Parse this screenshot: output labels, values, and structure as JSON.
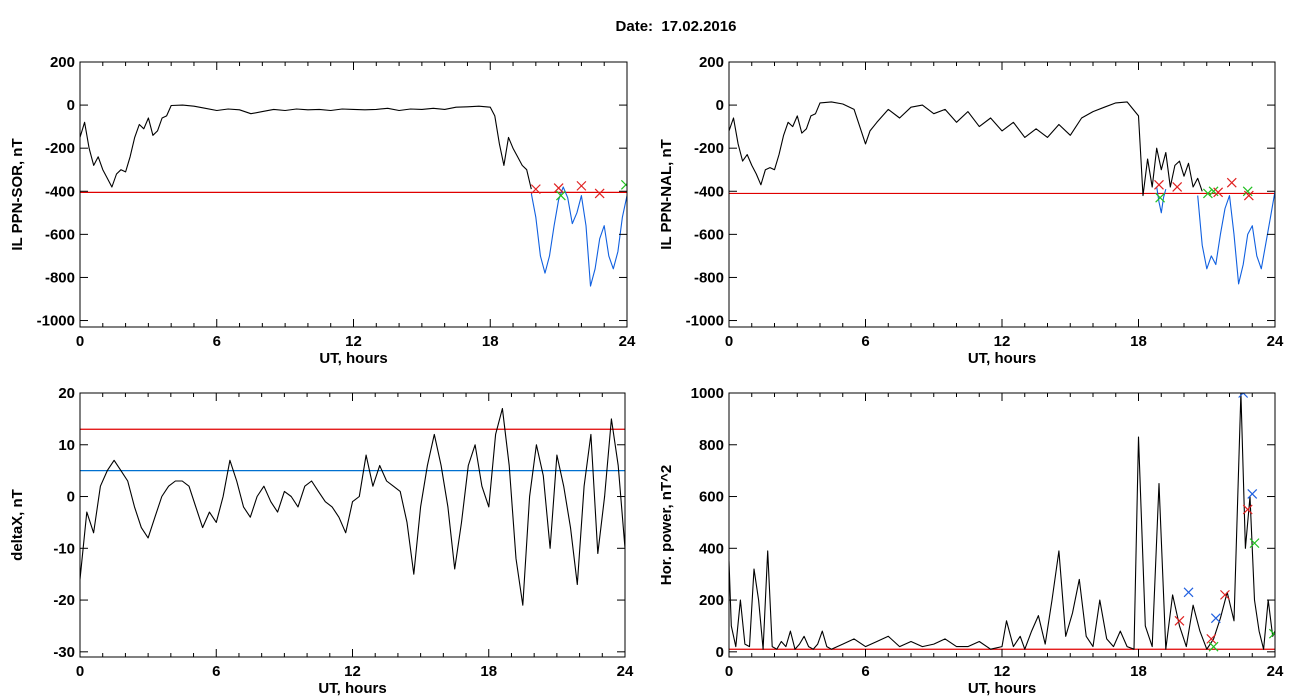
{
  "figure": {
    "title": "Date:  17.02.2016"
  },
  "colors": {
    "trace": "#000000",
    "threshold_red": "#e00000",
    "threshold_blue": "#0070d0",
    "segment_blue": "#1060e0",
    "marker_red": "#e02020",
    "marker_green": "#20c020",
    "marker_blue": "#2060e0"
  },
  "chart_data": [
    {
      "id": "p1",
      "type": "line",
      "xlabel": "UT, hours",
      "ylabel": "IL PPN-SOR, nT",
      "xlim": [
        0,
        24
      ],
      "ylim": [
        -1030,
        200
      ],
      "xticks": [
        0,
        6,
        12,
        18,
        24
      ],
      "yticks": [
        200,
        0,
        -200,
        -400,
        -600,
        -800,
        -1000
      ],
      "hlines": [
        {
          "y": -405,
          "color": "threshold_red"
        }
      ],
      "series": [
        {
          "color": "trace",
          "x": [
            0,
            0.2,
            0.4,
            0.6,
            0.8,
            1.0,
            1.2,
            1.4,
            1.6,
            1.8,
            2.0,
            2.2,
            2.4,
            2.6,
            2.8,
            3.0,
            3.2,
            3.4,
            3.6,
            3.8,
            4.0,
            4.5,
            5.0,
            5.5,
            6.0,
            6.5,
            7.0,
            7.5,
            8.0,
            8.5,
            9.0,
            9.5,
            10.0,
            10.5,
            11.0,
            11.5,
            12.0,
            12.5,
            13.0,
            13.5,
            14.0,
            14.5,
            15.0,
            15.5,
            16.0,
            16.5,
            17.0,
            17.5,
            18.0,
            18.2,
            18.4,
            18.6,
            18.8,
            19.0,
            19.2,
            19.4,
            19.6,
            19.8
          ],
          "y": [
            -150,
            -80,
            -200,
            -280,
            -240,
            -300,
            -340,
            -380,
            -320,
            -300,
            -310,
            -240,
            -150,
            -90,
            -110,
            -60,
            -140,
            -120,
            -60,
            -50,
            -2,
            0,
            -5,
            -15,
            -25,
            -18,
            -22,
            -40,
            -30,
            -20,
            -25,
            -18,
            -22,
            -20,
            -25,
            -18,
            -20,
            -22,
            -20,
            -15,
            -25,
            -18,
            -20,
            -15,
            -20,
            -10,
            -8,
            -5,
            -10,
            -50,
            -180,
            -280,
            -150,
            -200,
            -240,
            -280,
            -300,
            -390
          ]
        },
        {
          "color": "segment_blue",
          "x": [
            19.8,
            20.0,
            20.2,
            20.4,
            20.6,
            20.8,
            21.0,
            21.2,
            21.4,
            21.6,
            21.8,
            22.0,
            22.2,
            22.4,
            22.6,
            22.8,
            23.0,
            23.2,
            23.4,
            23.6,
            23.8,
            24.0
          ],
          "y": [
            -410,
            -520,
            -700,
            -780,
            -700,
            -560,
            -440,
            -380,
            -430,
            -550,
            -500,
            -420,
            -560,
            -840,
            -760,
            -620,
            -560,
            -700,
            -760,
            -680,
            -520,
            -420
          ]
        }
      ],
      "markers": [
        {
          "x": 20.0,
          "y": -390,
          "color": "marker_red"
        },
        {
          "x": 21.0,
          "y": -385,
          "color": "marker_red"
        },
        {
          "x": 21.1,
          "y": -420,
          "color": "marker_green"
        },
        {
          "x": 22.0,
          "y": -375,
          "color": "marker_red"
        },
        {
          "x": 22.8,
          "y": -410,
          "color": "marker_red"
        },
        {
          "x": 23.95,
          "y": -370,
          "color": "marker_green"
        }
      ]
    },
    {
      "id": "p2",
      "type": "line",
      "xlabel": "UT, hours",
      "ylabel": "IL PPN-NAL, nT",
      "xlim": [
        0,
        24
      ],
      "ylim": [
        -1030,
        200
      ],
      "xticks": [
        0,
        6,
        12,
        18,
        24
      ],
      "yticks": [
        200,
        0,
        -200,
        -400,
        -600,
        -800,
        -1000
      ],
      "hlines": [
        {
          "y": -410,
          "color": "threshold_red"
        }
      ],
      "series": [
        {
          "color": "trace",
          "x": [
            0,
            0.2,
            0.4,
            0.6,
            0.8,
            1.0,
            1.2,
            1.4,
            1.6,
            1.8,
            2.0,
            2.2,
            2.4,
            2.6,
            2.8,
            3.0,
            3.2,
            3.4,
            3.6,
            3.8,
            4.0,
            4.5,
            5.0,
            5.5,
            6.0,
            6.2,
            6.5,
            7.0,
            7.5,
            8.0,
            8.5,
            9.0,
            9.5,
            10.0,
            10.5,
            11.0,
            11.5,
            12.0,
            12.5,
            13.0,
            13.5,
            14.0,
            14.5,
            15.0,
            15.5,
            16.0,
            16.5,
            17.0,
            17.5,
            18.0,
            18.2,
            18.4,
            18.6,
            18.8,
            19.0,
            19.2,
            19.4,
            19.6,
            19.8,
            20.0,
            20.2,
            20.4,
            20.6,
            20.8
          ],
          "y": [
            -120,
            -60,
            -180,
            -260,
            -230,
            -280,
            -320,
            -370,
            -300,
            -290,
            -300,
            -230,
            -140,
            -80,
            -100,
            -50,
            -130,
            -110,
            -50,
            -40,
            10,
            15,
            5,
            -20,
            -180,
            -120,
            -80,
            -20,
            -60,
            -10,
            0,
            -40,
            -20,
            -80,
            -30,
            -100,
            -60,
            -120,
            -80,
            -150,
            -110,
            -150,
            -90,
            -140,
            -60,
            -30,
            -10,
            10,
            15,
            -50,
            -420,
            -250,
            -380,
            -200,
            -300,
            -220,
            -380,
            -280,
            -260,
            -330,
            -270,
            -380,
            -340,
            -400
          ]
        },
        {
          "color": "segment_blue",
          "x": [
            18.8,
            18.9,
            19.0,
            19.1,
            19.2
          ],
          "y": [
            -380,
            -450,
            -500,
            -430,
            -390
          ]
        },
        {
          "color": "segment_blue",
          "x": [
            20.6,
            20.8,
            21.0,
            21.2,
            21.4,
            21.6,
            21.8,
            22.0,
            22.2,
            22.4,
            22.6,
            22.8,
            23.0,
            23.2,
            23.4,
            23.6,
            23.8,
            24.0
          ],
          "y": [
            -420,
            -650,
            -760,
            -700,
            -740,
            -600,
            -480,
            -420,
            -600,
            -830,
            -740,
            -600,
            -560,
            -700,
            -760,
            -640,
            -520,
            -400
          ]
        }
      ],
      "markers": [
        {
          "x": 18.9,
          "y": -370,
          "color": "marker_red"
        },
        {
          "x": 18.95,
          "y": -430,
          "color": "marker_green"
        },
        {
          "x": 19.7,
          "y": -380,
          "color": "marker_red"
        },
        {
          "x": 21.05,
          "y": -410,
          "color": "marker_green"
        },
        {
          "x": 21.3,
          "y": -400,
          "color": "marker_green"
        },
        {
          "x": 21.5,
          "y": -405,
          "color": "marker_red"
        },
        {
          "x": 22.1,
          "y": -360,
          "color": "marker_red"
        },
        {
          "x": 22.8,
          "y": -400,
          "color": "marker_green"
        },
        {
          "x": 22.85,
          "y": -420,
          "color": "marker_red"
        }
      ]
    },
    {
      "id": "p3",
      "type": "line",
      "xlabel": "UT, hours",
      "ylabel": "deltaX, nT",
      "xlim": [
        0,
        24
      ],
      "ylim": [
        -31,
        20
      ],
      "xticks": [
        0,
        6,
        12,
        18,
        24
      ],
      "yticks": [
        20,
        10,
        0,
        -10,
        -20,
        -30
      ],
      "hlines": [
        {
          "y": 13,
          "color": "threshold_red"
        },
        {
          "y": 5,
          "color": "threshold_blue"
        }
      ],
      "series": [
        {
          "color": "trace",
          "x": [
            0,
            0.3,
            0.6,
            0.9,
            1.2,
            1.5,
            1.8,
            2.1,
            2.4,
            2.7,
            3.0,
            3.3,
            3.6,
            3.9,
            4.2,
            4.5,
            4.8,
            5.1,
            5.4,
            5.7,
            6.0,
            6.3,
            6.6,
            6.9,
            7.2,
            7.5,
            7.8,
            8.1,
            8.4,
            8.7,
            9.0,
            9.3,
            9.6,
            9.9,
            10.2,
            10.5,
            10.8,
            11.1,
            11.4,
            11.7,
            12.0,
            12.3,
            12.6,
            12.9,
            13.2,
            13.5,
            13.8,
            14.1,
            14.4,
            14.7,
            15.0,
            15.3,
            15.6,
            15.9,
            16.2,
            16.5,
            16.8,
            17.1,
            17.4,
            17.7,
            18.0,
            18.3,
            18.6,
            18.9,
            19.2,
            19.5,
            19.8,
            20.1,
            20.4,
            20.7,
            21.0,
            21.3,
            21.6,
            21.9,
            22.2,
            22.5,
            22.8,
            23.1,
            23.4,
            23.7,
            24.0
          ],
          "y": [
            -16,
            -3,
            -7,
            2,
            5,
            7,
            5,
            3,
            -2,
            -6,
            -8,
            -4,
            0,
            2,
            3,
            3,
            2,
            -2,
            -6,
            -3,
            -5,
            0,
            7,
            3,
            -2,
            -4,
            0,
            2,
            -1,
            -3,
            1,
            0,
            -2,
            2,
            3,
            1,
            -1,
            -2,
            -4,
            -7,
            -1,
            0,
            8,
            2,
            6,
            3,
            2,
            1,
            -5,
            -15,
            -2,
            6,
            12,
            6,
            -2,
            -14,
            -5,
            6,
            10,
            2,
            -2,
            12,
            17,
            6,
            -12,
            -21,
            0,
            10,
            4,
            -10,
            8,
            2,
            -6,
            -17,
            2,
            12,
            -11,
            0,
            15,
            6,
            -10
          ]
        }
      ],
      "markers": []
    },
    {
      "id": "p4",
      "type": "line",
      "xlabel": "UT, hours",
      "ylabel": "Hor. power, nT^2",
      "xlim": [
        0,
        24
      ],
      "ylim": [
        -20,
        1000
      ],
      "xticks": [
        0,
        6,
        12,
        18,
        24
      ],
      "yticks": [
        1000,
        800,
        600,
        400,
        200,
        0
      ],
      "hlines": [
        {
          "y": 10,
          "color": "threshold_red"
        }
      ],
      "series": [
        {
          "color": "trace",
          "x": [
            0,
            0.1,
            0.3,
            0.5,
            0.7,
            0.9,
            1.1,
            1.3,
            1.5,
            1.7,
            1.9,
            2.1,
            2.3,
            2.5,
            2.7,
            2.9,
            3.1,
            3.3,
            3.5,
            3.7,
            3.9,
            4.1,
            4.3,
            4.5,
            5.0,
            5.5,
            6.0,
            6.5,
            7.0,
            7.5,
            8.0,
            8.5,
            9.0,
            9.5,
            10.0,
            10.5,
            11.0,
            11.5,
            12.0,
            12.2,
            12.5,
            12.8,
            13.0,
            13.3,
            13.6,
            13.9,
            14.2,
            14.5,
            14.8,
            15.1,
            15.4,
            15.7,
            16.0,
            16.3,
            16.6,
            16.9,
            17.2,
            17.5,
            17.8,
            18.0,
            18.3,
            18.6,
            18.9,
            19.2,
            19.5,
            19.8,
            20.1,
            20.4,
            20.7,
            21.0,
            21.3,
            21.6,
            21.9,
            22.2,
            22.5,
            22.7,
            22.9,
            23.1,
            23.3,
            23.5,
            23.7,
            23.9,
            24.0
          ],
          "y": [
            350,
            100,
            20,
            200,
            30,
            20,
            320,
            200,
            10,
            390,
            20,
            10,
            40,
            20,
            80,
            10,
            30,
            60,
            20,
            10,
            30,
            80,
            20,
            10,
            30,
            50,
            20,
            40,
            60,
            20,
            40,
            20,
            30,
            50,
            20,
            20,
            40,
            10,
            20,
            120,
            20,
            60,
            10,
            80,
            140,
            30,
            200,
            390,
            60,
            150,
            280,
            60,
            20,
            200,
            50,
            20,
            80,
            20,
            10,
            830,
            100,
            20,
            650,
            10,
            220,
            100,
            20,
            180,
            80,
            10,
            50,
            130,
            230,
            120,
            1000,
            400,
            600,
            200,
            80,
            10,
            200,
            60,
            80
          ]
        }
      ],
      "markers": [
        {
          "x": 19.8,
          "y": 120,
          "color": "marker_red"
        },
        {
          "x": 20.2,
          "y": 230,
          "color": "marker_blue"
        },
        {
          "x": 21.2,
          "y": 50,
          "color": "marker_red"
        },
        {
          "x": 21.3,
          "y": 20,
          "color": "marker_green"
        },
        {
          "x": 21.4,
          "y": 130,
          "color": "marker_blue"
        },
        {
          "x": 21.8,
          "y": 220,
          "color": "marker_red"
        },
        {
          "x": 22.6,
          "y": 1000,
          "color": "marker_blue"
        },
        {
          "x": 22.8,
          "y": 550,
          "color": "marker_red"
        },
        {
          "x": 23.0,
          "y": 610,
          "color": "marker_blue"
        },
        {
          "x": 23.1,
          "y": 420,
          "color": "marker_green"
        },
        {
          "x": 23.95,
          "y": 70,
          "color": "marker_green"
        }
      ]
    }
  ]
}
